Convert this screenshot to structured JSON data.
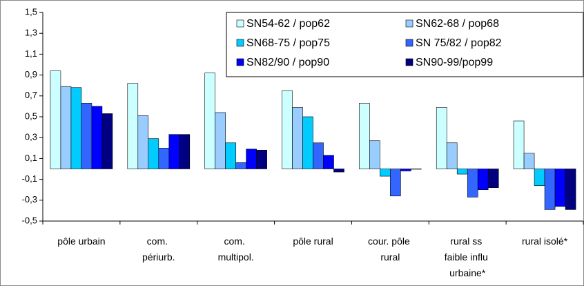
{
  "chart_data": {
    "type": "bar",
    "categories": [
      "pôle urbain",
      "com. périurb.",
      "com. multipol.",
      "pôle rural",
      "cour. pôle rural",
      "rural ss faible influ urbaine*",
      "rural isolé*"
    ],
    "series": [
      {
        "name": "SN54-62 / pop62",
        "color": "#ccffff",
        "values": [
          0.94,
          0.82,
          0.92,
          0.75,
          0.63,
          0.59,
          0.46
        ]
      },
      {
        "name": "SN62-68 / pop68",
        "color": "#99ccff",
        "values": [
          0.79,
          0.51,
          0.54,
          0.59,
          0.27,
          0.25,
          0.15
        ]
      },
      {
        "name": "SN68-75 / pop75",
        "color": "#00ccff",
        "values": [
          0.78,
          0.29,
          0.25,
          0.5,
          -0.07,
          -0.05,
          -0.16
        ]
      },
      {
        "name": "SN 75/82 / pop82",
        "color": "#3366ff",
        "values": [
          0.63,
          0.2,
          0.06,
          0.25,
          -0.26,
          -0.27,
          -0.39
        ]
      },
      {
        "name": "SN82/90 / pop90",
        "color": "#0000ff",
        "values": [
          0.6,
          0.33,
          0.19,
          0.13,
          -0.02,
          -0.2,
          -0.36
        ]
      },
      {
        "name": "SN90-99/pop99",
        "color": "#000080",
        "values": [
          0.53,
          0.33,
          0.18,
          -0.03,
          0,
          -0.18,
          -0.39
        ]
      }
    ],
    "ylim": [
      -0.5,
      1.5
    ],
    "yticks": [
      {
        "value": -0.5,
        "label": "-0,5"
      },
      {
        "value": -0.3,
        "label": "-0,3"
      },
      {
        "value": -0.1,
        "label": "-0,1"
      },
      {
        "value": 0.1,
        "label": "0,1"
      },
      {
        "value": 0.3,
        "label": "0,3"
      },
      {
        "value": 0.5,
        "label": "0,5"
      },
      {
        "value": 0.7,
        "label": "0,7"
      },
      {
        "value": 0.9,
        "label": "0,9"
      },
      {
        "value": 1.1,
        "label": "1,1"
      },
      {
        "value": 1.3,
        "label": "1,3"
      },
      {
        "value": 1.5,
        "label": "1,5"
      }
    ],
    "grid": false,
    "legend": "top-right"
  }
}
